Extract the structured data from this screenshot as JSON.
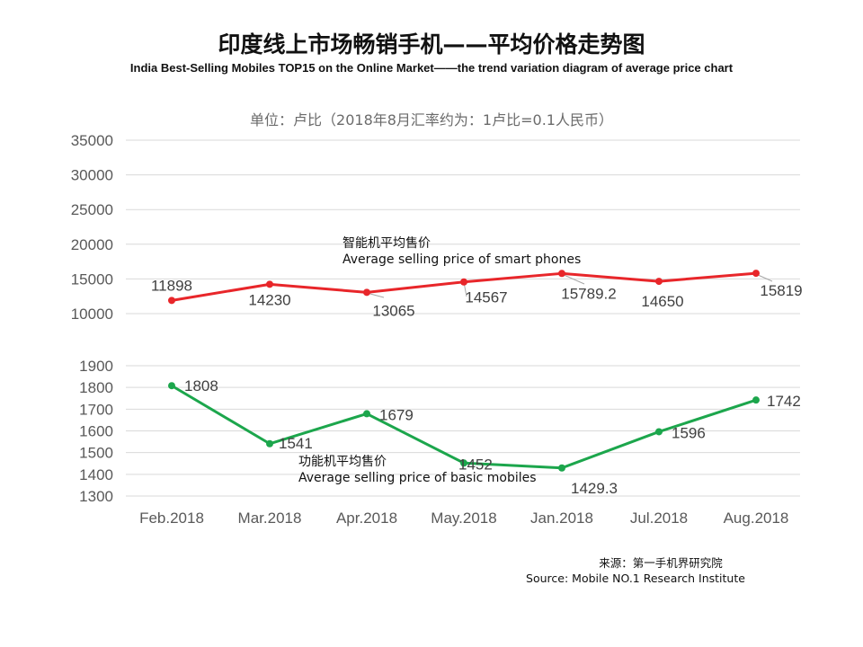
{
  "title_cn": "印度线上市场畅销手机——平均价格走势图",
  "title_en": "India Best-Selling  Mobiles TOP15 on the Online Market——the trend variation diagram of average price chart",
  "unit_note": "单位：卢比（2018年8月汇率约为：1卢比=0.1人民币）",
  "source_cn": "来源：第一手机界研究院",
  "source_en": "Source: Mobile NO.1 Research Institute",
  "chart_data": {
    "type": "line",
    "categories": [
      "Feb.2018",
      "Mar.2018",
      "Apr.2018",
      "May.2018",
      "Jan.2018",
      "Jul.2018",
      "Aug.2018"
    ],
    "panels": [
      {
        "yticks": [
          "10000",
          "15000",
          "20000",
          "25000",
          "30000",
          "35000"
        ],
        "ylim": [
          10000,
          35000
        ],
        "grid": true,
        "series": [
          {
            "name_cn": "智能机平均售价",
            "name_en": "Average selling price of smart phones",
            "color": "#e8262a",
            "values": [
              11898,
              14230,
              13065,
              14567,
              15789.2,
              14650,
              15819
            ],
            "labels": [
              "11898",
              "14230",
              "13065",
              "14567",
              "15789.2",
              "14650",
              "15819"
            ]
          }
        ]
      },
      {
        "yticks": [
          "1300",
          "1400",
          "1500",
          "1600",
          "1700",
          "1800",
          "1900"
        ],
        "ylim": [
          1300,
          1900
        ],
        "grid": true,
        "series": [
          {
            "name_cn": "功能机平均售价",
            "name_en": "Average selling price of basic mobiles",
            "color": "#1ca64c",
            "values": [
              1808,
              1541,
              1679,
              1452,
              1429.3,
              1596,
              1742
            ],
            "labels": [
              "1808",
              "1541",
              "1679",
              "1452",
              "1429.3",
              "1596",
              "1742"
            ]
          }
        ]
      }
    ]
  }
}
